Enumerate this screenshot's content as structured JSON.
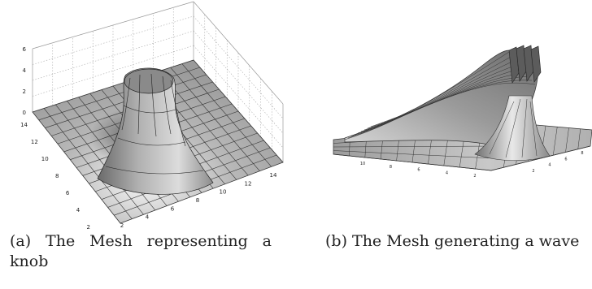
{
  "figures": [
    {
      "id": "a",
      "caption": "(a) The Mesh representing a knob",
      "z_ticks": [
        "0",
        "2",
        "4",
        "6"
      ],
      "y_ticks": [
        "14",
        "12",
        "10",
        "8",
        "6",
        "4",
        "2"
      ],
      "x_ticks": [
        "2",
        "4",
        "6",
        "8",
        "10",
        "12",
        "14"
      ]
    },
    {
      "id": "b",
      "caption": "(b) The Mesh generating a wave",
      "left_ticks": [
        "10",
        "8",
        "6",
        "4",
        "2"
      ],
      "right_ticks": [
        "2",
        "4",
        "6",
        "8"
      ]
    }
  ]
}
